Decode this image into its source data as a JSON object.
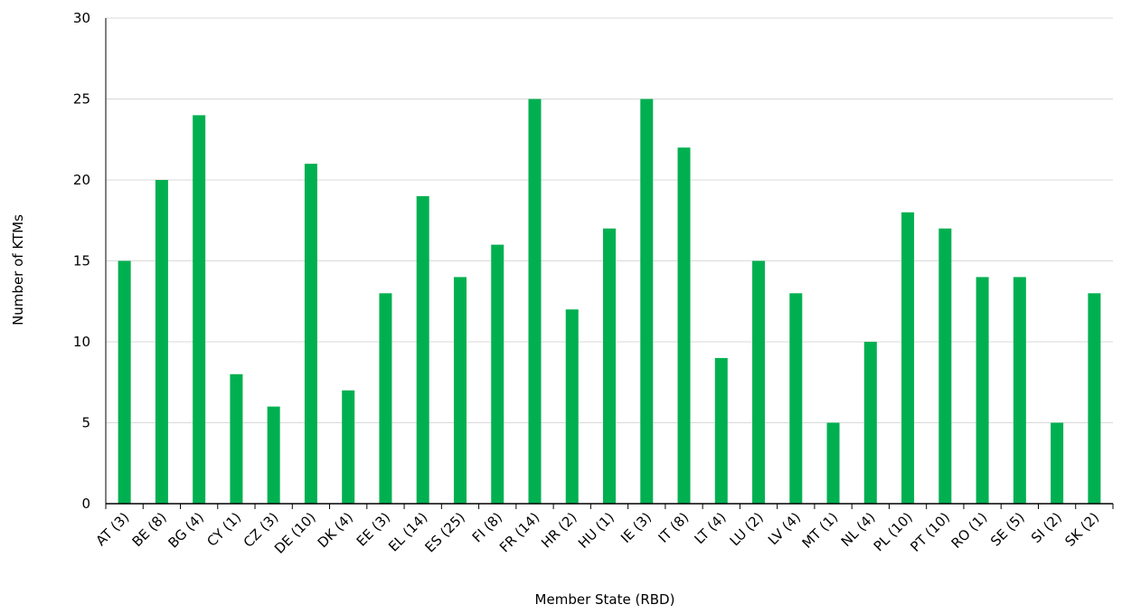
{
  "colors": {
    "bar": "#00b050",
    "grid": "#d9d9d9",
    "axis": "#000000",
    "text": "#000000"
  },
  "chart_data": {
    "type": "bar",
    "title": "",
    "xlabel": "Member  State (RBD)",
    "ylabel": "Number  of KTMs",
    "ylim": [
      0,
      30
    ],
    "yticks": [
      0,
      5,
      10,
      15,
      20,
      25,
      30
    ],
    "grid": "horizontal",
    "legend": "none",
    "categories": [
      "AT (3)",
      "BE (8)",
      "BG (4)",
      "CY (1)",
      "CZ (3)",
      "DE (10)",
      "DK (4)",
      "EE (3)",
      "EL (14)",
      "ES (25)",
      "FI (8)",
      "FR (14)",
      "HR (2)",
      "HU (1)",
      "IE (3)",
      "IT (8)",
      "LT (4)",
      "LU (2)",
      "LV (4)",
      "MT (1)",
      "NL (4)",
      "PL (10)",
      "PT (10)",
      "RO (1)",
      "SE (5)",
      "SI (2)",
      "SK (2)"
    ],
    "values": [
      15,
      20,
      24,
      8,
      6,
      21,
      7,
      13,
      19,
      14,
      16,
      25,
      12,
      17,
      25,
      22,
      9,
      15,
      13,
      5,
      10,
      18,
      17,
      14,
      14,
      5,
      13
    ]
  }
}
